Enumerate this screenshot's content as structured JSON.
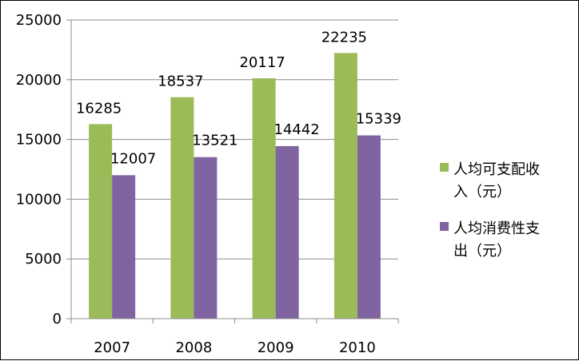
{
  "chart_data": {
    "type": "bar",
    "title": "",
    "xlabel": "",
    "ylabel": "",
    "categories": [
      "2007",
      "2008",
      "2009",
      "2010"
    ],
    "series": [
      {
        "name": "人均可支配收入（元）",
        "values": [
          16285,
          18537,
          20117,
          22235
        ],
        "color": "#9bbb59"
      },
      {
        "name": "人均消费性支出（元）",
        "values": [
          12007,
          13521,
          14442,
          15339
        ],
        "color": "#8064a2"
      }
    ],
    "ylim": [
      0,
      25000
    ],
    "yticks": [
      0,
      5000,
      10000,
      15000,
      20000,
      25000
    ],
    "grid": true,
    "data_labels": true,
    "legend_position": "right"
  }
}
